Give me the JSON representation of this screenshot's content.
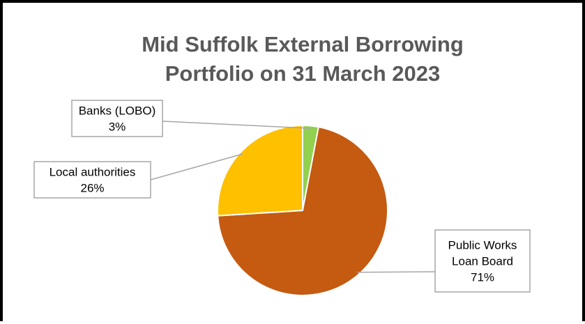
{
  "chart_data": {
    "type": "pie",
    "title": "Mid Suffolk External Borrowing Portfolio on 31 March 2023",
    "title_lines": [
      "Mid Suffolk External Borrowing",
      "Portfolio on 31 March 2023"
    ],
    "slices": [
      {
        "name": "Banks (LOBO)",
        "value": 3,
        "label_lines": [
          "Banks (LOBO)",
          "3%"
        ],
        "color": "#92D050"
      },
      {
        "name": "Public Works Loan Board",
        "value": 71,
        "label_lines": [
          "Public Works",
          "Loan Board",
          "71%"
        ],
        "color": "#C55A11"
      },
      {
        "name": "Local authorities",
        "value": 26,
        "label_lines": [
          "Local authorities",
          "26%"
        ],
        "color": "#FFC000"
      }
    ],
    "start_angle_deg": 0,
    "legend": "none",
    "data_labels": "callout"
  }
}
